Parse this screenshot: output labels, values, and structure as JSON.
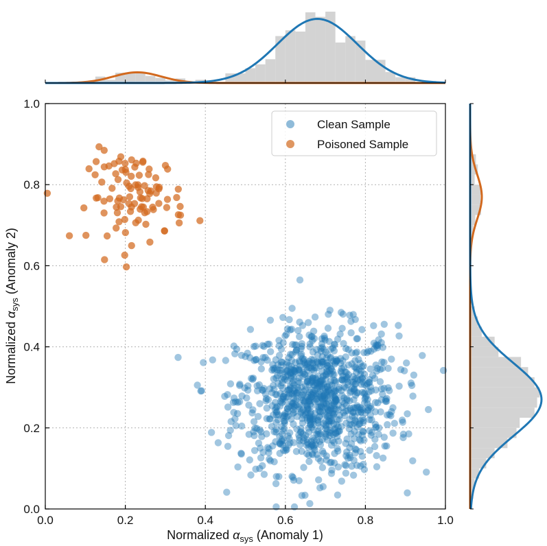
{
  "chart_data": {
    "type": "scatter",
    "subtype": "joint-plot with marginal histograms and density curves",
    "xlabel": {
      "prefix": "Normalized ",
      "symbol": "α",
      "subscript": "sys",
      "suffix": " (Anomaly 1)"
    },
    "ylabel": {
      "prefix": "Normalized ",
      "symbol": "α",
      "subscript": "sys",
      "suffix": " (Anomaly 2)"
    },
    "xlim": [
      0.0,
      1.0
    ],
    "ylim": [
      0.0,
      1.0
    ],
    "x_ticks": [
      "0.0",
      "0.2",
      "0.4",
      "0.6",
      "0.8",
      "1.0"
    ],
    "y_ticks": [
      "0.0",
      "0.2",
      "0.4",
      "0.6",
      "0.8",
      "1.0"
    ],
    "grid": true,
    "legend_position": "top-right",
    "series": [
      {
        "name": "Clean Sample",
        "color": "#1f77b4",
        "point_count": 1000,
        "center": [
          0.68,
          0.27
        ],
        "spread": [
          0.1,
          0.09
        ],
        "marginal_density": {
          "x_mean": 0.68,
          "x_sd": 0.1,
          "y_mean": 0.27,
          "y_sd": 0.09
        }
      },
      {
        "name": "Poisoned Sample",
        "color": "#d2691e",
        "point_count": 100,
        "center": [
          0.23,
          0.77
        ],
        "spread": [
          0.06,
          0.055
        ],
        "marginal_density": {
          "x_mean": 0.23,
          "x_sd": 0.06,
          "y_mean": 0.77,
          "y_sd": 0.055
        }
      }
    ],
    "marginal_histogram_color": "#d3d3d3",
    "marginal_histogram_bins": 40
  }
}
